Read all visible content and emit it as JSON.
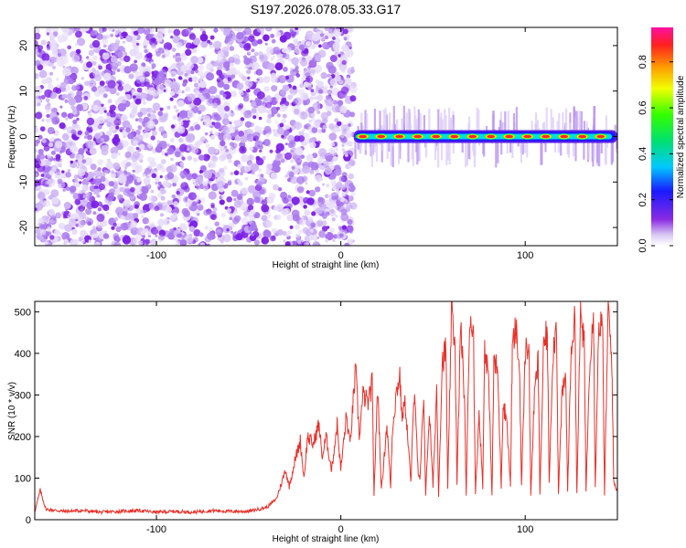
{
  "chart_data": [
    {
      "type": "heatmap",
      "title": "S197.2026.078.05.33.G17",
      "xlabel": "Height of straight line (km)",
      "ylabel": "Frequency (Hz)",
      "xlim": [
        -166,
        150
      ],
      "ylim": [
        -24,
        24
      ],
      "xticks": [
        -100,
        0,
        100
      ],
      "yticks": [
        -20,
        -10,
        0,
        10,
        20
      ],
      "noise_region_x": [
        -166,
        7
      ],
      "signal_region_x": [
        7,
        150
      ],
      "signal_frequency": 0,
      "colorbar": {
        "label": "Normalized spectral amplitude",
        "range": [
          0,
          0.95
        ],
        "ticks": [
          0.0,
          0.2,
          0.4,
          0.6,
          0.8
        ]
      }
    },
    {
      "type": "line",
      "xlabel": "Height of straight line (km)",
      "ylabel": "SNR (10 * v/v)",
      "xlim": [
        -166,
        150
      ],
      "ylim": [
        0,
        525
      ],
      "xticks": [
        -100,
        0,
        100
      ],
      "yticks": [
        0,
        100,
        200,
        300,
        400,
        500
      ],
      "color": "#e8302a",
      "series": [
        {
          "name": "SNR",
          "x": [
            -166,
            -163,
            -160,
            -150,
            -140,
            -130,
            -120,
            -110,
            -100,
            -90,
            -80,
            -70,
            -60,
            -50,
            -45,
            -40,
            -35,
            -32,
            -30,
            -28,
            -25,
            -22,
            -20,
            -18,
            -15,
            -12,
            -10,
            -8,
            -5,
            -2,
            0,
            3,
            5,
            8,
            10,
            12,
            15,
            17,
            18,
            20,
            22,
            25,
            27,
            28,
            30,
            32,
            33,
            35,
            38,
            40,
            42,
            43,
            45,
            46,
            48,
            50,
            52,
            53,
            55,
            57,
            58,
            60,
            62,
            63,
            65,
            67,
            68,
            70,
            72,
            73,
            75,
            77,
            78,
            80,
            82,
            83,
            85,
            87,
            88,
            90,
            92,
            93,
            95,
            97,
            98,
            100,
            102,
            103,
            105,
            107,
            108,
            110,
            112,
            113,
            115,
            117,
            118,
            120,
            122,
            123,
            125,
            127,
            128,
            130,
            132,
            133,
            135,
            137,
            138,
            140,
            142,
            143,
            145,
            147,
            148,
            150
          ],
          "y": [
            20,
            70,
            25,
            20,
            22,
            18,
            20,
            22,
            18,
            20,
            18,
            22,
            20,
            20,
            25,
            30,
            50,
            90,
            120,
            80,
            140,
            190,
            100,
            200,
            180,
            230,
            150,
            200,
            120,
            230,
            120,
            250,
            180,
            360,
            200,
            300,
            280,
            330,
            60,
            320,
            70,
            230,
            80,
            220,
            300,
            350,
            250,
            280,
            90,
            330,
            100,
            100,
            300,
            60,
            260,
            80,
            320,
            60,
            380,
            410,
            70,
            500,
            420,
            80,
            470,
            300,
            60,
            500,
            440,
            60,
            260,
            80,
            420,
            350,
            60,
            380,
            360,
            80,
            280,
            240,
            80,
            410,
            460,
            350,
            80,
            400,
            430,
            60,
            300,
            380,
            60,
            420,
            450,
            90,
            400,
            470,
            60,
            300,
            340,
            70,
            420,
            480,
            60,
            500,
            420,
            70,
            380,
            520,
            80,
            480,
            460,
            60,
            510,
            380,
            90,
            70
          ]
        }
      ]
    }
  ]
}
